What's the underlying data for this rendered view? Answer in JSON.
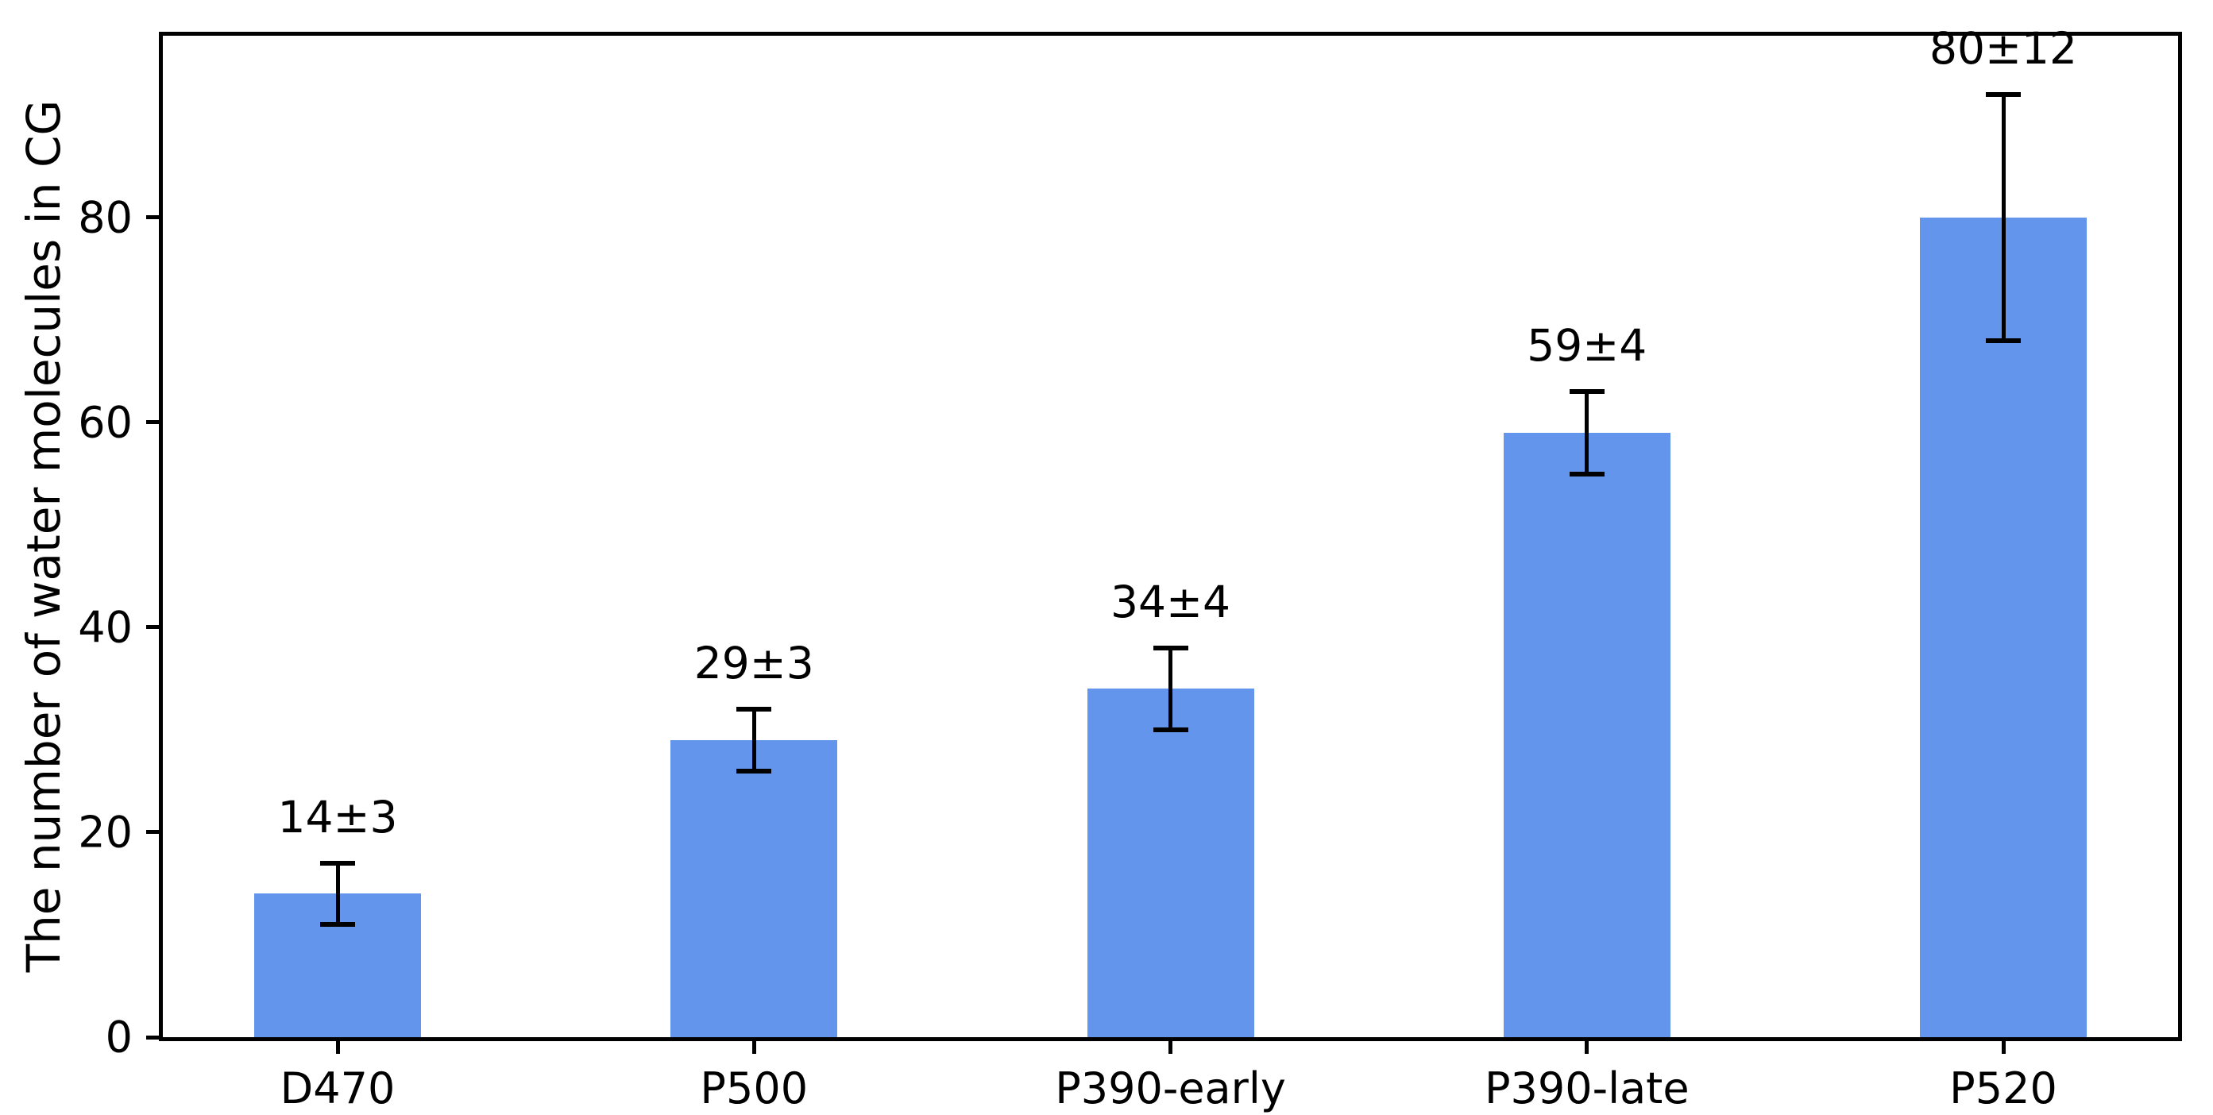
{
  "chart_data": {
    "type": "bar",
    "title": "",
    "xlabel": "",
    "ylabel": "The number of water molecules in CG",
    "categories": [
      "D470",
      "P500",
      "P390-early",
      "P390-late",
      "P520"
    ],
    "values": [
      14,
      29,
      34,
      59,
      80
    ],
    "errors": [
      3,
      3,
      4,
      4,
      12
    ],
    "bar_labels": [
      "14±3",
      "29±3",
      "34±4",
      "59±4",
      "80±12"
    ],
    "yticks": [
      0,
      20,
      40,
      60,
      80
    ],
    "ytick_labels": [
      "0",
      "20",
      "40",
      "60",
      "80"
    ],
    "ylim": [
      0,
      97.75
    ],
    "grid": false,
    "legend": null,
    "bar_color": "#6495ED",
    "error_bar_color": "#000000",
    "axis_color": "#000000",
    "background_color": "#ffffff"
  }
}
